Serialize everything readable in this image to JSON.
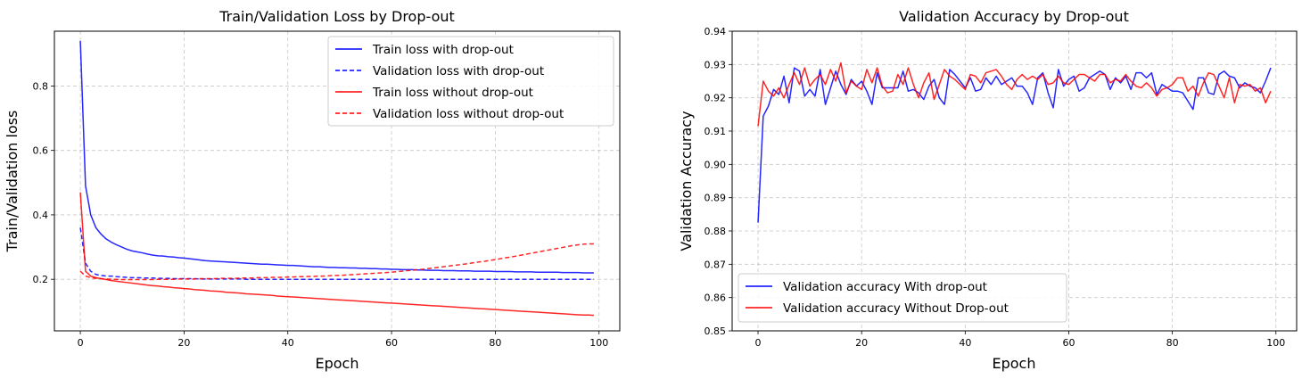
{
  "chart_data": [
    {
      "type": "line",
      "title": "Train/Validation Loss by Drop-out",
      "xlabel": "Epoch",
      "ylabel": "Train/Validation loss",
      "xlim": [
        -5,
        104
      ],
      "ylim": [
        0.04,
        0.97
      ],
      "xticks": [
        0,
        20,
        40,
        60,
        80,
        100
      ],
      "yticks": [
        0.2,
        0.4,
        0.6,
        0.8
      ],
      "grid": true,
      "legend_position": "top-right",
      "series": [
        {
          "name": "Train loss with drop-out",
          "color": "#0000ff",
          "style": "solid",
          "values": [
            0.94,
            0.49,
            0.4,
            0.36,
            0.34,
            0.325,
            0.315,
            0.307,
            0.3,
            0.293,
            0.288,
            0.285,
            0.282,
            0.278,
            0.275,
            0.273,
            0.272,
            0.27,
            0.269,
            0.267,
            0.266,
            0.264,
            0.262,
            0.26,
            0.258,
            0.257,
            0.256,
            0.255,
            0.254,
            0.253,
            0.252,
            0.251,
            0.25,
            0.249,
            0.248,
            0.247,
            0.247,
            0.246,
            0.245,
            0.244,
            0.243,
            0.243,
            0.242,
            0.241,
            0.24,
            0.239,
            0.239,
            0.238,
            0.237,
            0.237,
            0.236,
            0.236,
            0.235,
            0.235,
            0.234,
            0.234,
            0.233,
            0.233,
            0.232,
            0.232,
            0.231,
            0.231,
            0.23,
            0.23,
            0.23,
            0.229,
            0.229,
            0.228,
            0.228,
            0.228,
            0.227,
            0.227,
            0.227,
            0.226,
            0.226,
            0.226,
            0.225,
            0.225,
            0.225,
            0.225,
            0.224,
            0.224,
            0.224,
            0.224,
            0.223,
            0.223,
            0.223,
            0.223,
            0.222,
            0.222,
            0.222,
            0.222,
            0.222,
            0.221,
            0.221,
            0.221,
            0.221,
            0.22,
            0.22,
            0.22
          ]
        },
        {
          "name": "Validation loss with drop-out",
          "color": "#0000ff",
          "style": "dashed",
          "values": [
            0.36,
            0.25,
            0.225,
            0.215,
            0.212,
            0.21,
            0.21,
            0.208,
            0.207,
            0.206,
            0.205,
            0.205,
            0.204,
            0.204,
            0.204,
            0.203,
            0.203,
            0.203,
            0.202,
            0.202,
            0.202,
            0.202,
            0.202,
            0.201,
            0.201,
            0.201,
            0.201,
            0.201,
            0.201,
            0.201,
            0.201,
            0.201,
            0.2,
            0.2,
            0.2,
            0.2,
            0.2,
            0.2,
            0.2,
            0.2,
            0.2,
            0.2,
            0.2,
            0.2,
            0.2,
            0.2,
            0.2,
            0.2,
            0.2,
            0.2,
            0.2,
            0.2,
            0.2,
            0.2,
            0.2,
            0.2,
            0.2,
            0.2,
            0.2,
            0.2,
            0.2,
            0.2,
            0.2,
            0.2,
            0.2,
            0.2,
            0.2,
            0.2,
            0.2,
            0.2,
            0.2,
            0.2,
            0.2,
            0.2,
            0.2,
            0.2,
            0.2,
            0.2,
            0.2,
            0.2,
            0.2,
            0.2,
            0.2,
            0.2,
            0.2,
            0.2,
            0.2,
            0.2,
            0.2,
            0.2,
            0.2,
            0.2,
            0.2,
            0.2,
            0.2,
            0.2,
            0.2,
            0.2,
            0.2,
            0.2
          ]
        },
        {
          "name": "Train loss without drop-out",
          "color": "#ff0000",
          "style": "solid",
          "values": [
            0.47,
            0.225,
            0.21,
            0.205,
            0.202,
            0.199,
            0.196,
            0.194,
            0.192,
            0.19,
            0.188,
            0.186,
            0.184,
            0.182,
            0.18,
            0.179,
            0.177,
            0.176,
            0.174,
            0.173,
            0.171,
            0.17,
            0.168,
            0.167,
            0.166,
            0.164,
            0.163,
            0.162,
            0.16,
            0.159,
            0.158,
            0.157,
            0.155,
            0.154,
            0.153,
            0.152,
            0.151,
            0.15,
            0.148,
            0.147,
            0.146,
            0.145,
            0.144,
            0.143,
            0.142,
            0.141,
            0.14,
            0.139,
            0.138,
            0.137,
            0.136,
            0.135,
            0.134,
            0.133,
            0.132,
            0.131,
            0.13,
            0.129,
            0.128,
            0.127,
            0.126,
            0.125,
            0.124,
            0.123,
            0.122,
            0.121,
            0.12,
            0.119,
            0.118,
            0.117,
            0.116,
            0.115,
            0.114,
            0.113,
            0.112,
            0.111,
            0.11,
            0.109,
            0.108,
            0.107,
            0.106,
            0.105,
            0.104,
            0.103,
            0.102,
            0.101,
            0.1,
            0.099,
            0.098,
            0.097,
            0.096,
            0.095,
            0.094,
            0.093,
            0.092,
            0.091,
            0.09,
            0.089,
            0.089,
            0.088
          ]
        },
        {
          "name": "Validation loss without drop-out",
          "color": "#ff0000",
          "style": "dashed",
          "values": [
            0.225,
            0.21,
            0.205,
            0.203,
            0.202,
            0.201,
            0.2,
            0.2,
            0.199,
            0.199,
            0.199,
            0.199,
            0.199,
            0.199,
            0.199,
            0.2,
            0.2,
            0.2,
            0.2,
            0.201,
            0.201,
            0.201,
            0.201,
            0.202,
            0.202,
            0.202,
            0.202,
            0.203,
            0.203,
            0.203,
            0.203,
            0.204,
            0.204,
            0.204,
            0.205,
            0.205,
            0.205,
            0.206,
            0.206,
            0.206,
            0.207,
            0.207,
            0.208,
            0.208,
            0.209,
            0.209,
            0.21,
            0.21,
            0.211,
            0.212,
            0.212,
            0.213,
            0.214,
            0.215,
            0.216,
            0.217,
            0.218,
            0.219,
            0.22,
            0.221,
            0.222,
            0.224,
            0.225,
            0.227,
            0.228,
            0.23,
            0.231,
            0.233,
            0.235,
            0.237,
            0.239,
            0.241,
            0.243,
            0.245,
            0.247,
            0.249,
            0.252,
            0.254,
            0.256,
            0.259,
            0.261,
            0.264,
            0.267,
            0.269,
            0.272,
            0.275,
            0.278,
            0.281,
            0.284,
            0.287,
            0.29,
            0.293,
            0.296,
            0.299,
            0.302,
            0.305,
            0.307,
            0.309,
            0.31,
            0.31
          ]
        }
      ]
    },
    {
      "type": "line",
      "title": "Validation Accuracy by Drop-out",
      "xlabel": "Epoch",
      "ylabel": "Validation Accuracy",
      "xlim": [
        -5,
        104
      ],
      "ylim": [
        0.85,
        0.94
      ],
      "xticks": [
        0,
        20,
        40,
        60,
        80,
        100
      ],
      "yticks": [
        0.85,
        0.86,
        0.87,
        0.88,
        0.89,
        0.9,
        0.91,
        0.92,
        0.93,
        0.94
      ],
      "grid": true,
      "legend_position": "bottom-left",
      "series": [
        {
          "name": "Validation accuracy With drop-out",
          "color": "#0000ff",
          "style": "solid",
          "values": [
            0.8825,
            0.9145,
            0.9175,
            0.9225,
            0.921,
            0.9265,
            0.9185,
            0.929,
            0.928,
            0.9205,
            0.9225,
            0.9205,
            0.9285,
            0.918,
            0.923,
            0.928,
            0.924,
            0.921,
            0.9255,
            0.9235,
            0.925,
            0.922,
            0.918,
            0.9275,
            0.923,
            0.923,
            0.923,
            0.923,
            0.928,
            0.922,
            0.9225,
            0.9215,
            0.9195,
            0.9235,
            0.9255,
            0.92,
            0.918,
            0.9285,
            0.927,
            0.925,
            0.923,
            0.926,
            0.922,
            0.9225,
            0.926,
            0.924,
            0.9265,
            0.924,
            0.925,
            0.926,
            0.9235,
            0.9235,
            0.9215,
            0.918,
            0.926,
            0.9275,
            0.9215,
            0.917,
            0.9285,
            0.9235,
            0.9255,
            0.9265,
            0.922,
            0.923,
            0.926,
            0.927,
            0.928,
            0.927,
            0.9225,
            0.926,
            0.9245,
            0.9265,
            0.9225,
            0.9275,
            0.9275,
            0.926,
            0.9275,
            0.921,
            0.924,
            0.923,
            0.922,
            0.922,
            0.9215,
            0.919,
            0.9165,
            0.926,
            0.926,
            0.9215,
            0.921,
            0.927,
            0.928,
            0.9265,
            0.926,
            0.923,
            0.9245,
            0.9235,
            0.923,
            0.9215,
            0.925,
            0.929
          ]
        },
        {
          "name": "Validation accuracy Without Drop-out",
          "color": "#ff0000",
          "style": "solid",
          "values": [
            0.9115,
            0.925,
            0.922,
            0.9205,
            0.923,
            0.92,
            0.924,
            0.9275,
            0.924,
            0.929,
            0.9235,
            0.9255,
            0.927,
            0.924,
            0.9285,
            0.925,
            0.9305,
            0.9215,
            0.925,
            0.9235,
            0.9225,
            0.9285,
            0.9245,
            0.929,
            0.9235,
            0.9215,
            0.922,
            0.927,
            0.924,
            0.929,
            0.924,
            0.92,
            0.9245,
            0.9275,
            0.9195,
            0.924,
            0.9285,
            0.9265,
            0.9255,
            0.924,
            0.9225,
            0.927,
            0.9265,
            0.9245,
            0.9275,
            0.928,
            0.9285,
            0.9265,
            0.924,
            0.9225,
            0.9255,
            0.927,
            0.9255,
            0.9265,
            0.9255,
            0.927,
            0.924,
            0.9245,
            0.9265,
            0.9245,
            0.924,
            0.9255,
            0.927,
            0.927,
            0.926,
            0.925,
            0.927,
            0.927,
            0.9245,
            0.9255,
            0.925,
            0.927,
            0.925,
            0.9235,
            0.923,
            0.9245,
            0.923,
            0.9205,
            0.9225,
            0.923,
            0.924,
            0.926,
            0.926,
            0.922,
            0.9235,
            0.9205,
            0.9245,
            0.9275,
            0.927,
            0.9235,
            0.92,
            0.926,
            0.9185,
            0.924,
            0.9235,
            0.924,
            0.922,
            0.923,
            0.9185,
            0.922
          ]
        }
      ]
    }
  ]
}
